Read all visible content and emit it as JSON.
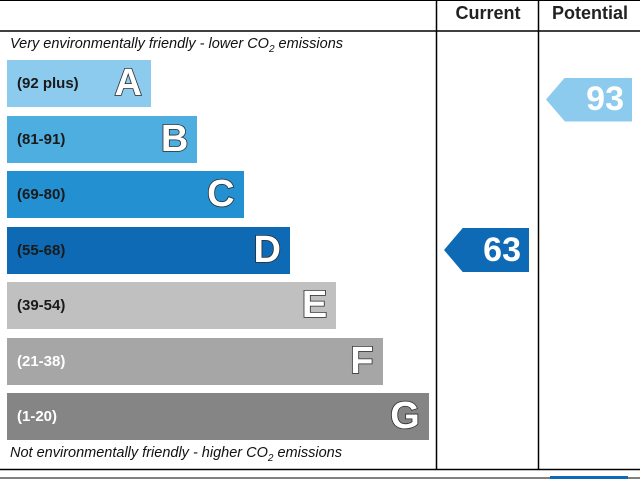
{
  "chart_data": {
    "type": "bar",
    "title": "",
    "columns": [
      "Current",
      "Potential"
    ],
    "top_note": "Very environmentally friendly - lower CO",
    "bottom_note": "Not environmentally friendly - higher CO",
    "emission_subscript": "2",
    "note_suffix": "emissions",
    "bands": [
      {
        "letter": "A",
        "range": "(92 plus)",
        "min": 92,
        "max": 100,
        "color": "#8ccbee",
        "text_color": "#1a1a1a"
      },
      {
        "letter": "B",
        "range": "(81-91)",
        "min": 81,
        "max": 91,
        "color": "#4eaedf",
        "text_color": "#1a1a1a"
      },
      {
        "letter": "C",
        "range": "(69-80)",
        "min": 69,
        "max": 80,
        "color": "#2290d1",
        "text_color": "#1a1a1a"
      },
      {
        "letter": "D",
        "range": "(55-68)",
        "min": 55,
        "max": 68,
        "color": "#0e6ab4",
        "text_color": "#1a1a1a"
      },
      {
        "letter": "E",
        "range": "(39-54)",
        "min": 39,
        "max": 54,
        "color": "#c0c0c0",
        "text_color": "#1a1a1a"
      },
      {
        "letter": "F",
        "range": "(21-38)",
        "min": 21,
        "max": 38,
        "color": "#a6a6a6",
        "text_color": "#ffffff"
      },
      {
        "letter": "G",
        "range": "(1-20)",
        "min": 1,
        "max": 20,
        "color": "#858585",
        "text_color": "#ffffff"
      }
    ],
    "ratings": {
      "current": {
        "value": 63,
        "band": "D",
        "color": "#0e6ab4"
      },
      "potential": {
        "value": 93,
        "band": "A",
        "color": "#8ccbee"
      }
    }
  }
}
